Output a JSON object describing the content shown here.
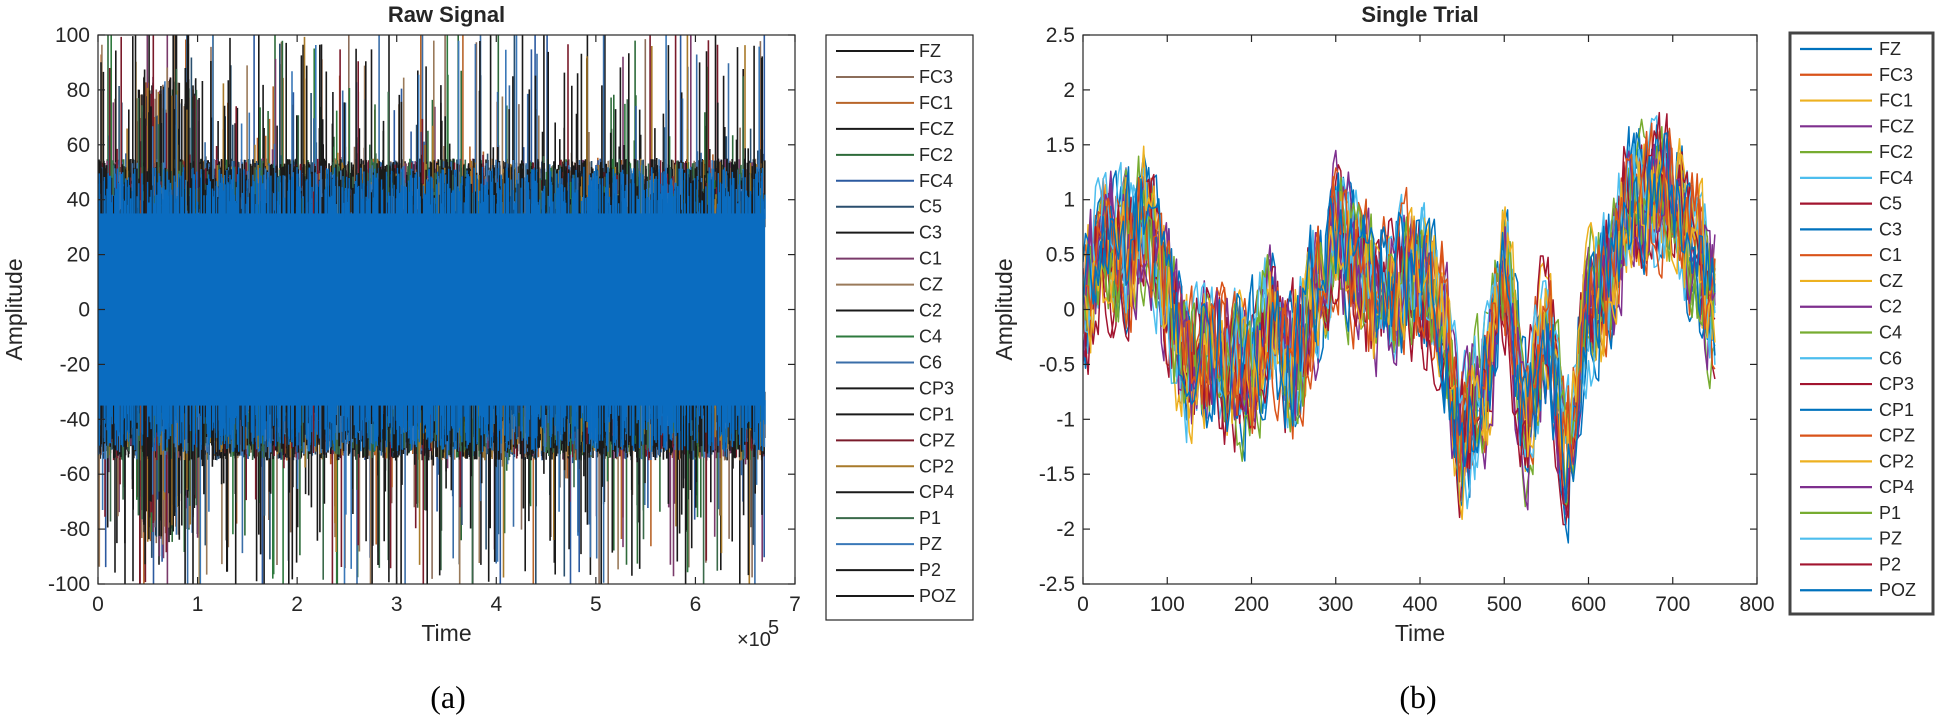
{
  "chart_data": [
    {
      "type": "line",
      "panel": "a",
      "title": "Raw Signal",
      "xlabel": "Time",
      "ylabel": "Amplitude",
      "xlim": [
        0,
        7
      ],
      "ylim": [
        -100,
        100
      ],
      "x_scale_label": "×10",
      "x_scale_exponent": "5",
      "x_data_end": 6.7,
      "xticks": [
        "0",
        "1",
        "2",
        "3",
        "4",
        "5",
        "6",
        "7"
      ],
      "yticks": [
        "-100",
        "-80",
        "-60",
        "-40",
        "-20",
        "0",
        "20",
        "40",
        "60",
        "80",
        "100"
      ],
      "band_range": [
        -35,
        35
      ],
      "typical_peak_range": [
        -55,
        55
      ],
      "legend_position": "outside-right",
      "series": [
        {
          "name": "FZ",
          "color": "#1a1a1a"
        },
        {
          "name": "FC3",
          "color": "#8c6d5a"
        },
        {
          "name": "FC1",
          "color": "#b8652a"
        },
        {
          "name": "FCZ",
          "color": "#1a1a1a"
        },
        {
          "name": "FC2",
          "color": "#2e6b3a"
        },
        {
          "name": "FC4",
          "color": "#2c5aa0"
        },
        {
          "name": "C5",
          "color": "#2a4f6e"
        },
        {
          "name": "C3",
          "color": "#1a1a1a"
        },
        {
          "name": "C1",
          "color": "#7a3a6a"
        },
        {
          "name": "CZ",
          "color": "#9a7a5a"
        },
        {
          "name": "C2",
          "color": "#1a1a1a"
        },
        {
          "name": "C4",
          "color": "#2e7a3e"
        },
        {
          "name": "C6",
          "color": "#3a6ea8"
        },
        {
          "name": "CP3",
          "color": "#1a1a1a"
        },
        {
          "name": "CP1",
          "color": "#1a1a1a"
        },
        {
          "name": "CPZ",
          "color": "#7a1a2a"
        },
        {
          "name": "CP2",
          "color": "#a87a2a"
        },
        {
          "name": "CP4",
          "color": "#1a1a1a"
        },
        {
          "name": "P1",
          "color": "#3a6a4a"
        },
        {
          "name": "PZ",
          "color": "#3a78b8"
        },
        {
          "name": "P2",
          "color": "#1a1a1a"
        },
        {
          "name": "POZ",
          "color": "#1a1a1a"
        }
      ],
      "caption": "(a)"
    },
    {
      "type": "line",
      "panel": "b",
      "title": "Single Trial",
      "xlabel": "Time",
      "ylabel": "Amplitude",
      "xlim": [
        0,
        800
      ],
      "ylim": [
        -2.5,
        2.5
      ],
      "x_data_end": 750,
      "xticks": [
        "0",
        "100",
        "200",
        "300",
        "400",
        "500",
        "600",
        "700",
        "800"
      ],
      "yticks": [
        "-2.5",
        "-2",
        "-1.5",
        "-1",
        "-0.5",
        "0",
        "0.5",
        "1",
        "1.5",
        "2",
        "2.5"
      ],
      "envelope_x": [
        0,
        25,
        50,
        75,
        100,
        125,
        150,
        175,
        200,
        225,
        250,
        275,
        300,
        325,
        350,
        375,
        400,
        425,
        450,
        475,
        500,
        525,
        550,
        575,
        600,
        625,
        650,
        675,
        700,
        725,
        750
      ],
      "envelope_y": [
        0.0,
        0.6,
        0.5,
        0.8,
        0.1,
        -0.5,
        -0.4,
        -0.6,
        -0.5,
        -0.1,
        -0.5,
        0.1,
        0.7,
        0.4,
        0.1,
        0.2,
        0.3,
        0.0,
        -1.2,
        -0.7,
        0.4,
        -1.0,
        -0.2,
        -1.3,
        0.0,
        0.3,
        1.0,
        1.0,
        1.1,
        0.6,
        0.0
      ],
      "legend_position": "outside-right",
      "series": [
        {
          "name": "FZ",
          "color": "#0072bd"
        },
        {
          "name": "FC3",
          "color": "#d95319"
        },
        {
          "name": "FC1",
          "color": "#edb120"
        },
        {
          "name": "FCZ",
          "color": "#7e2f8e"
        },
        {
          "name": "FC2",
          "color": "#77ac30"
        },
        {
          "name": "FC4",
          "color": "#4dbeee"
        },
        {
          "name": "C5",
          "color": "#a2142f"
        },
        {
          "name": "C3",
          "color": "#0072bd"
        },
        {
          "name": "C1",
          "color": "#d95319"
        },
        {
          "name": "CZ",
          "color": "#edb120"
        },
        {
          "name": "C2",
          "color": "#7e2f8e"
        },
        {
          "name": "C4",
          "color": "#77ac30"
        },
        {
          "name": "C6",
          "color": "#4dbeee"
        },
        {
          "name": "CP3",
          "color": "#a2142f"
        },
        {
          "name": "CP1",
          "color": "#0072bd"
        },
        {
          "name": "CPZ",
          "color": "#d95319"
        },
        {
          "name": "CP2",
          "color": "#edb120"
        },
        {
          "name": "CP4",
          "color": "#7e2f8e"
        },
        {
          "name": "P1",
          "color": "#77ac30"
        },
        {
          "name": "PZ",
          "color": "#4dbeee"
        },
        {
          "name": "P2",
          "color": "#a2142f"
        },
        {
          "name": "POZ",
          "color": "#0072bd"
        }
      ],
      "caption": "(b)"
    }
  ]
}
